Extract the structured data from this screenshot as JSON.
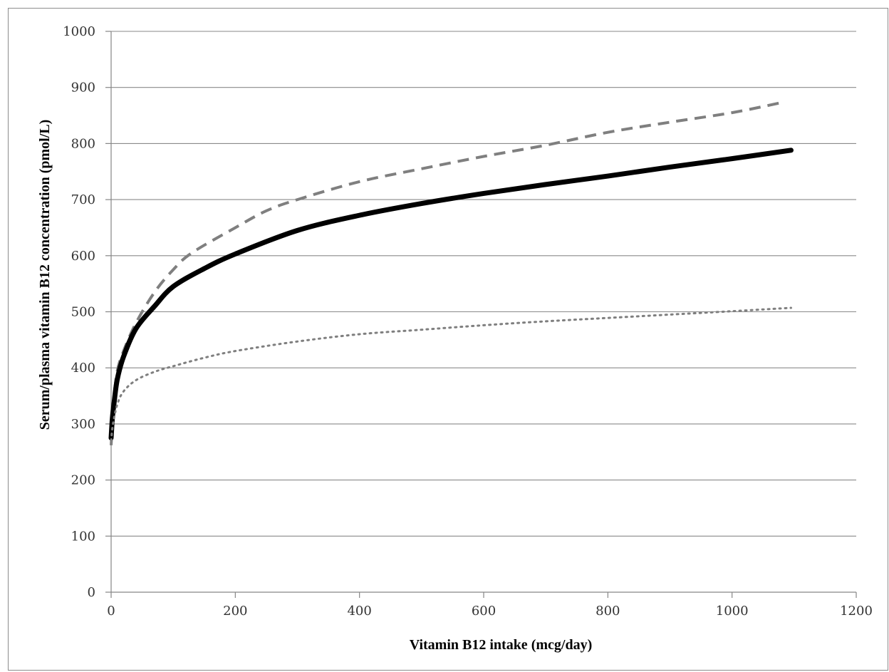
{
  "chart_data": {
    "type": "line",
    "xlabel": "Vitamin B12 intake (mcg/day)",
    "ylabel": "Serum/plasma vitamin B12 concentration (pmol/L)",
    "xlim": [
      0,
      1200
    ],
    "ylim": [
      0,
      1000
    ],
    "x_ticks": [
      "0",
      "200",
      "400",
      "600",
      "800",
      "1000",
      "1200"
    ],
    "y_ticks": [
      "0",
      "100",
      "200",
      "300",
      "400",
      "500",
      "600",
      "700",
      "800",
      "900",
      "1000"
    ],
    "grid": "horizontal",
    "legend": "none",
    "series": [
      {
        "style": "dashed",
        "color": "#7f7f7f",
        "points": [
          [
            0,
            262
          ],
          [
            2,
            300
          ],
          [
            5,
            350
          ],
          [
            10,
            395
          ],
          [
            20,
            430
          ],
          [
            40,
            480
          ],
          [
            70,
            535
          ],
          [
            100,
            575
          ],
          [
            130,
            605
          ],
          [
            200,
            650
          ],
          [
            250,
            680
          ],
          [
            300,
            700
          ],
          [
            400,
            732
          ],
          [
            500,
            755
          ],
          [
            600,
            777
          ],
          [
            700,
            797
          ],
          [
            800,
            820
          ],
          [
            900,
            838
          ],
          [
            1000,
            855
          ],
          [
            1080,
            873
          ]
        ]
      },
      {
        "style": "solid",
        "color": "#000000",
        "points": [
          [
            0,
            275
          ],
          [
            2,
            310
          ],
          [
            5,
            340
          ],
          [
            10,
            380
          ],
          [
            20,
            420
          ],
          [
            40,
            470
          ],
          [
            70,
            510
          ],
          [
            100,
            545
          ],
          [
            150,
            577
          ],
          [
            200,
            603
          ],
          [
            300,
            645
          ],
          [
            400,
            672
          ],
          [
            500,
            693
          ],
          [
            600,
            711
          ],
          [
            700,
            727
          ],
          [
            800,
            742
          ],
          [
            900,
            758
          ],
          [
            1000,
            773
          ],
          [
            1095,
            788
          ]
        ]
      },
      {
        "style": "dotted",
        "color": "#7f7f7f",
        "points": [
          [
            0,
            270
          ],
          [
            3,
            300
          ],
          [
            10,
            335
          ],
          [
            20,
            358
          ],
          [
            40,
            378
          ],
          [
            70,
            393
          ],
          [
            100,
            403
          ],
          [
            150,
            418
          ],
          [
            200,
            430
          ],
          [
            300,
            447
          ],
          [
            400,
            460
          ],
          [
            500,
            468
          ],
          [
            600,
            476
          ],
          [
            700,
            483
          ],
          [
            800,
            489
          ],
          [
            900,
            495
          ],
          [
            1000,
            501
          ],
          [
            1095,
            507
          ]
        ]
      }
    ]
  }
}
